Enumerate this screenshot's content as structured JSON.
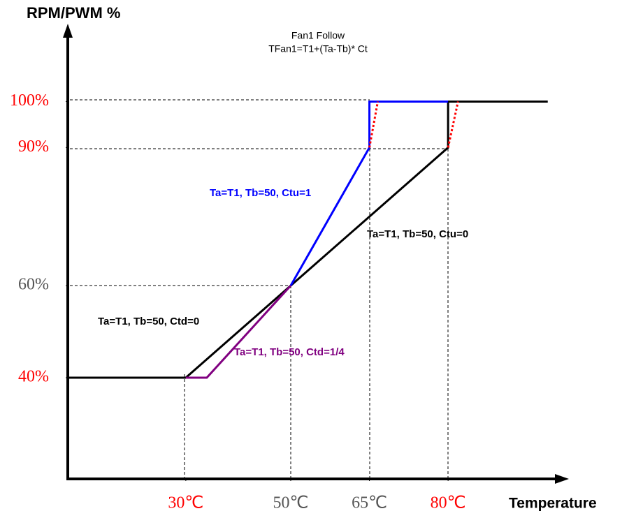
{
  "chart_data": {
    "type": "line",
    "title": "Fan1 Follow",
    "subtitle": "TFan1=T1+(Ta-Tb)* Ct",
    "y_label": "RPM/PWM %",
    "x_label": "Temperature",
    "xlim": [
      7.5,
      102.5
    ],
    "ylim": [
      18,
      116
    ],
    "xticks": [
      {
        "value": 30,
        "label": "30℃"
      },
      {
        "value": 50,
        "label": "50℃"
      },
      {
        "value": 65,
        "label": "65℃"
      },
      {
        "value": 80,
        "label": "80℃"
      }
    ],
    "xtick_colors": [
      "#ff0000",
      "#555555",
      "#555555",
      "#ff0000"
    ],
    "yticks": [
      {
        "value": 40,
        "label": "40%"
      },
      {
        "value": 60,
        "label": "60%"
      },
      {
        "value": 90,
        "label": "90%"
      },
      {
        "value": 100,
        "label": "100%"
      }
    ],
    "ytick_colors": [
      "#ff0000",
      "#555555",
      "#ff0000",
      "#ff0000"
    ],
    "series": [
      {
        "color": "#000000",
        "x": [
          7.5,
          30,
          50,
          80,
          80,
          99
        ],
        "values": [
          40,
          40,
          60,
          90,
          100,
          100
        ]
      },
      {
        "color": "#0000ff",
        "x": [
          50,
          65,
          65,
          80
        ],
        "values": [
          60,
          90,
          100,
          100
        ]
      },
      {
        "color": "#800080",
        "x": [
          30,
          34,
          50
        ],
        "values": [
          40,
          40,
          60
        ]
      },
      {
        "color": "#ff0000",
        "dashed": true,
        "x": [
          65,
          66.6
        ],
        "values": [
          90,
          100
        ]
      },
      {
        "color": "#ff0000",
        "dashed": true,
        "x": [
          80,
          81.9
        ],
        "values": [
          90,
          100
        ]
      }
    ],
    "annotations": [
      {
        "text": "Ta=T1, Tb=50, Ctu=1",
        "color": "#0000ff"
      },
      {
        "text": "Ta=T1, Tb=50, Ctu=0",
        "color": "#000000"
      },
      {
        "text": "Ta=T1, Tb=50, Ctd=0",
        "color": "#000000"
      },
      {
        "text": "Ta=T1, Tb=50, Ctd=1/4",
        "color": "#800080"
      }
    ]
  }
}
